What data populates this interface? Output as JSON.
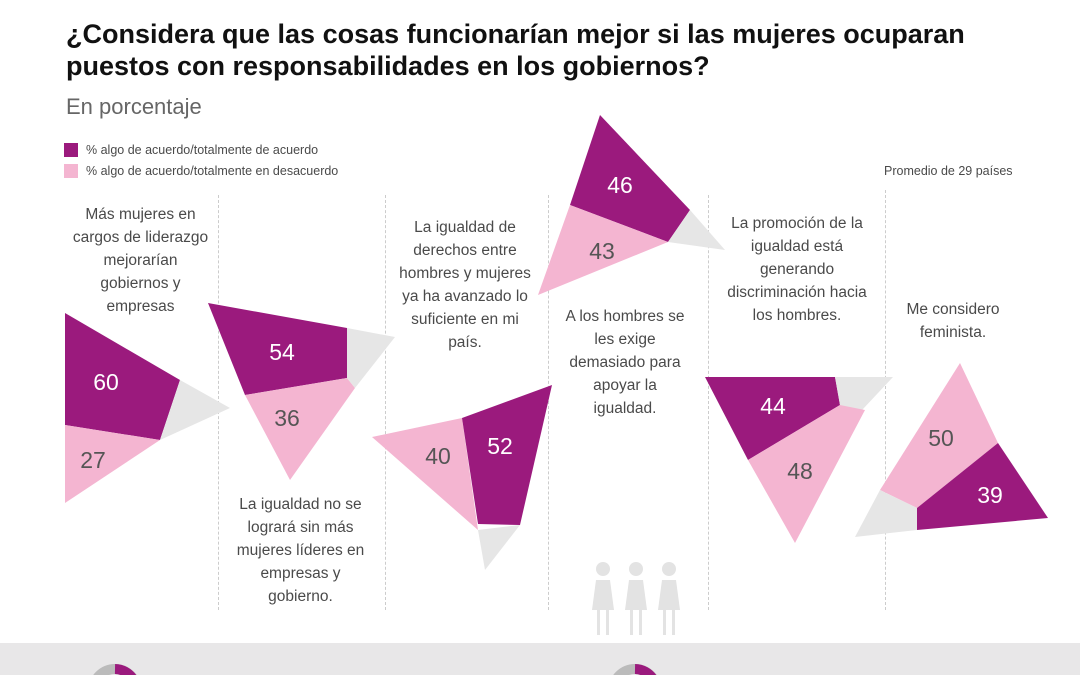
{
  "title": "¿Considera que las cosas funcionarían mejor si las mujeres ocuparan puestos con responsabilidades en los gobiernos?",
  "subtitle": "En porcentaje",
  "note": "Promedio de 29 países",
  "colors": {
    "agree": "#9b1a7d",
    "disagree": "#f4b5d1",
    "other": "#e6e6e6"
  },
  "chart_data": {
    "type": "pie",
    "legend": [
      "% algo de acuerdo/totalmente de acuerdo",
      "% algo de acuerdo/totalmente en desacuerdo"
    ],
    "items": [
      {
        "statement": "Más mujeres en cargos de liderazgo mejorarían gobiernos y empresas",
        "agree": 60,
        "disagree": 27
      },
      {
        "statement": "La igualdad no se logrará sin más mujeres líderes en empresas y gobierno.",
        "agree": 54,
        "disagree": 36
      },
      {
        "statement": "La igualdad de derechos entre hombres y mujeres ya ha avanzado lo suficiente en mi país.",
        "agree": 52,
        "disagree": 40
      },
      {
        "statement": "A los hombres se les exige demasiado para apoyar la igualdad.",
        "agree": 46,
        "disagree": 43
      },
      {
        "statement": "La promoción de la igualdad está generando discriminación hacia los hombres.",
        "agree": 44,
        "disagree": 48
      },
      {
        "statement": "Me considero feminista.",
        "agree": 39,
        "disagree": 50
      }
    ]
  }
}
